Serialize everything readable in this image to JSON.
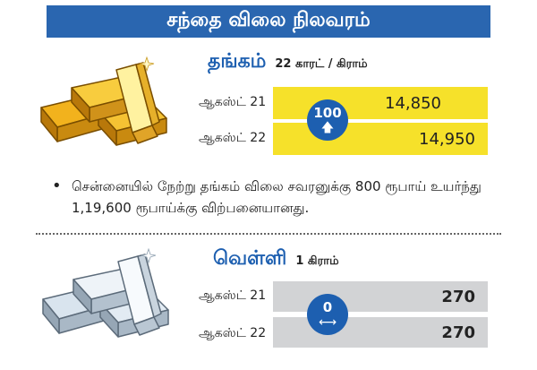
{
  "header": {
    "title": "சந்தை விலை நிலவரம்"
  },
  "gold": {
    "name": "தங்கம்",
    "unit": "22 காரட் / கிராம்",
    "rows": [
      {
        "date": "ஆகஸ்ட் 21",
        "price": "14,850"
      },
      {
        "date": "ஆகஸ்ட் 22",
        "price": "14,950"
      }
    ],
    "change": "100",
    "change_icon": "up-arrow-icon",
    "color": "#f6e12a"
  },
  "note": {
    "bullet": "•",
    "text": "சென்னையில் நேற்று தங்கம் விலை சவரனுக்கு 800 ரூபாய் உயர்ந்து 1,19,600 ரூபாய்க்கு விற்பனையானது."
  },
  "silver": {
    "name": "வெள்ளி",
    "unit": "1 கிராம்",
    "rows": [
      {
        "date": "ஆகஸ்ட் 21",
        "price": "270"
      },
      {
        "date": "ஆகஸ்ட் 22",
        "price": "270"
      }
    ],
    "change": "0",
    "change_icon": "left-right-arrow-icon",
    "color": "#d2d3d5"
  },
  "colors": {
    "banner": "#2a66b0",
    "accent": "#1d5fb0"
  }
}
